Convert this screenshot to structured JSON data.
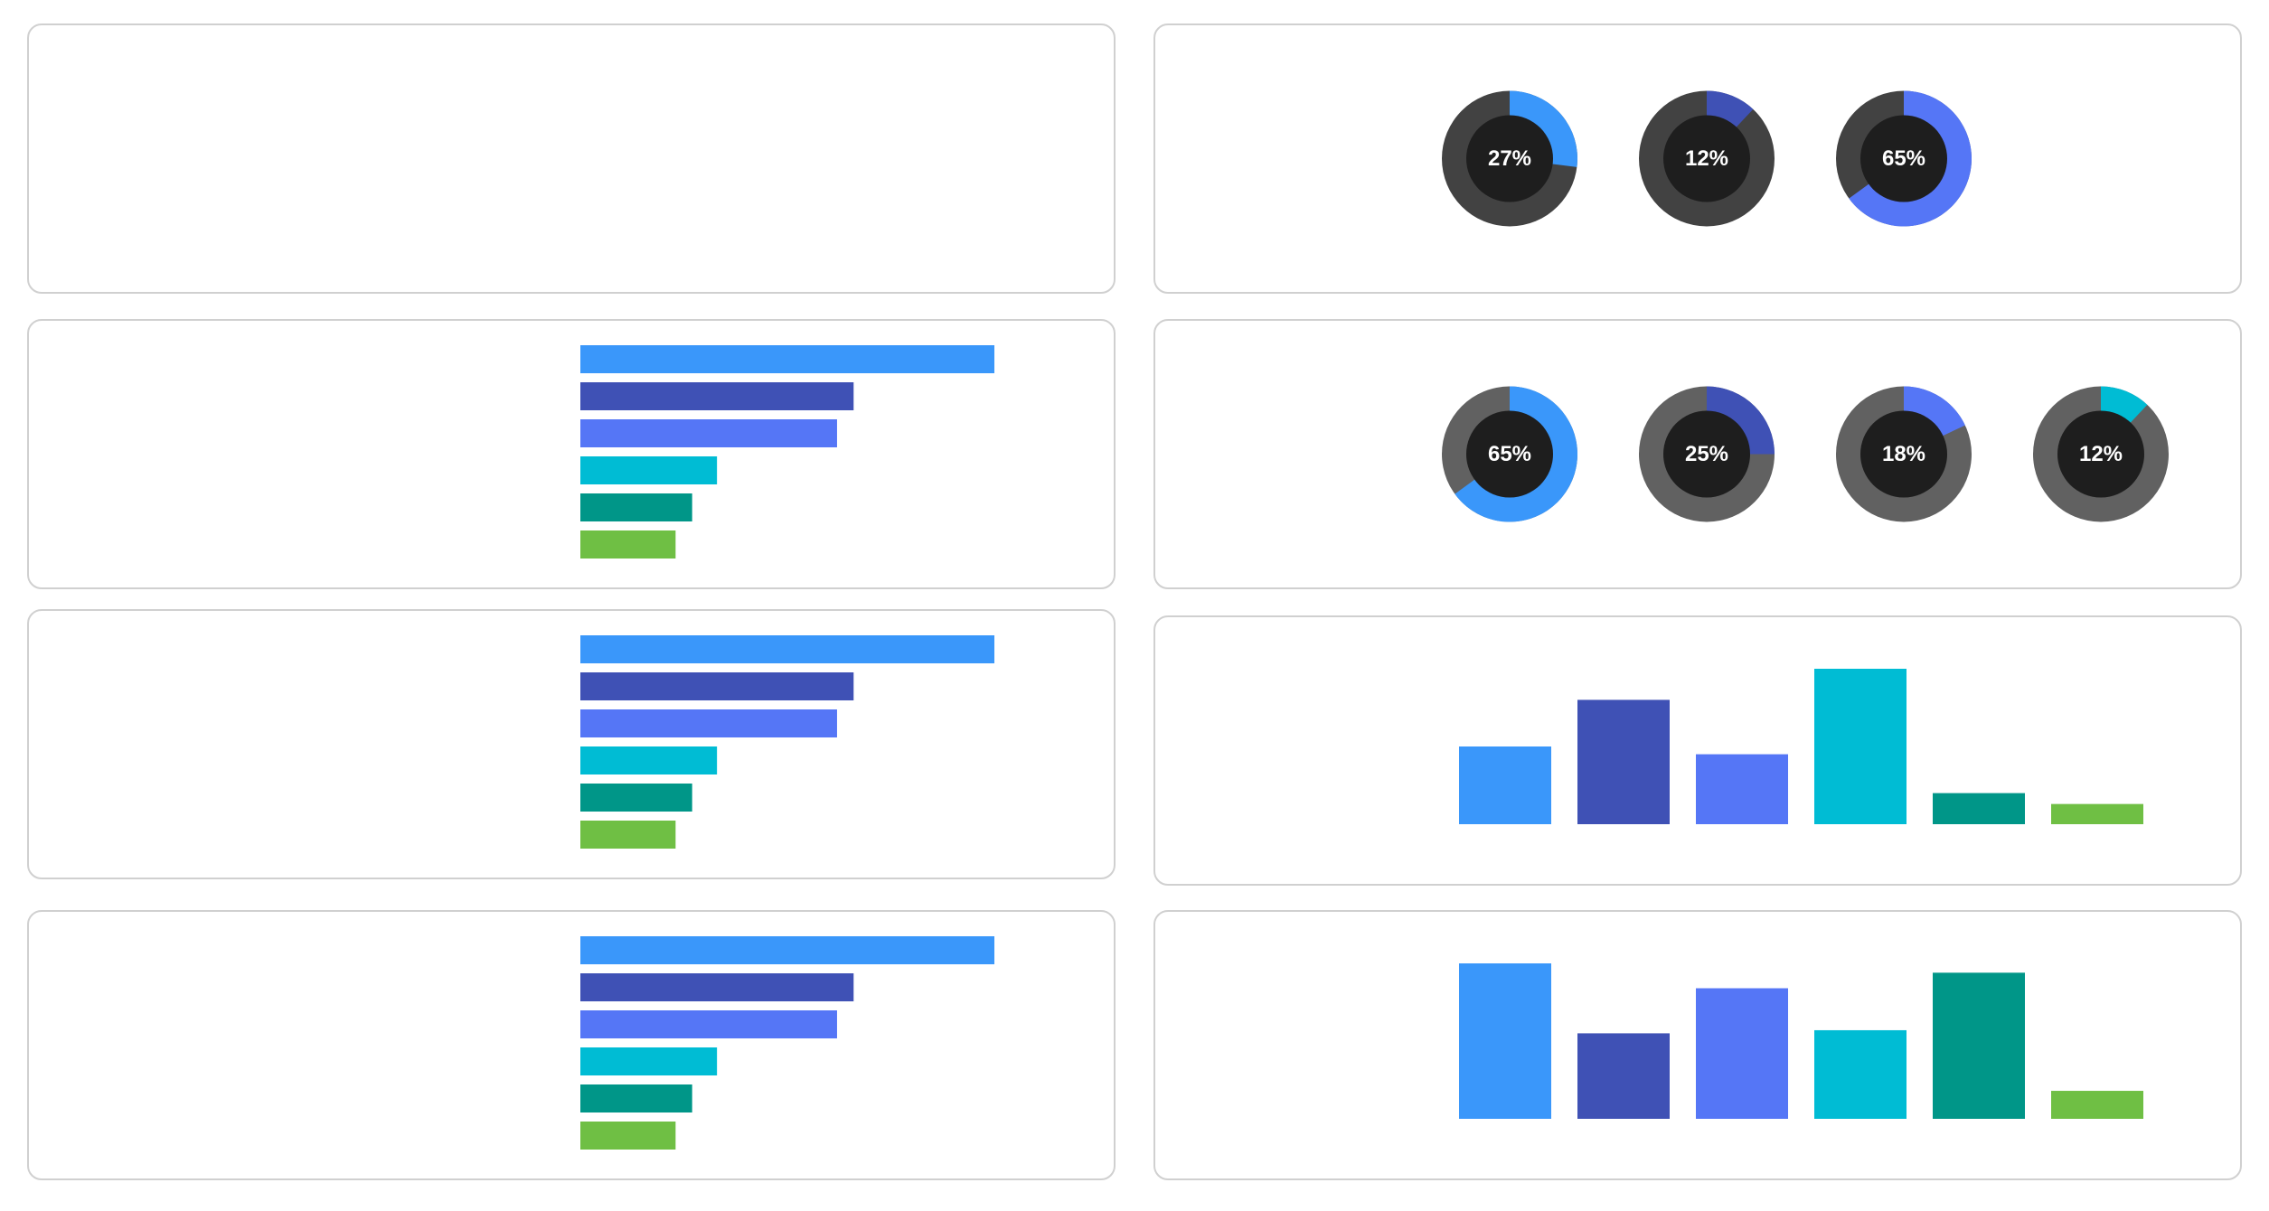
{
  "colors": {
    "blue": "#3a97fa",
    "indigo": "#3f51b5",
    "periwinkle": "#5576f6",
    "cyan": "#00bcd4",
    "teal": "#009688",
    "green": "#6fbf44",
    "track_dark": "#424242",
    "track_mid": "#616161",
    "hole": "#1e1e1e",
    "card_border": "#d0d0d0"
  },
  "cards": [
    {
      "id": "card-1",
      "empty": true
    },
    {
      "id": "card-2"
    },
    {
      "id": "card-3"
    },
    {
      "id": "card-4"
    },
    {
      "id": "card-5"
    },
    {
      "id": "card-6"
    },
    {
      "id": "card-7"
    },
    {
      "id": "card-8"
    }
  ],
  "chart_data": [
    {
      "type": "pie",
      "subtype": "donut-row",
      "track_color": "#424242",
      "donuts": [
        {
          "label": "27%",
          "value": 27,
          "color": "#3a97fa"
        },
        {
          "label": "12%",
          "value": 12,
          "color": "#3f51b5"
        },
        {
          "label": "65%",
          "value": 65,
          "color": "#5576f6"
        }
      ]
    },
    {
      "type": "bar",
      "orientation": "horizontal",
      "values": [
        100,
        66,
        62,
        33,
        27,
        23
      ],
      "colors": [
        "#3a97fa",
        "#3f51b5",
        "#5576f6",
        "#00bcd4",
        "#009688",
        "#6fbf44"
      ]
    },
    {
      "type": "pie",
      "subtype": "donut-row",
      "track_color": "#616161",
      "donuts": [
        {
          "label": "65%",
          "value": 65,
          "color": "#3a97fa"
        },
        {
          "label": "25%",
          "value": 25,
          "color": "#3f51b5"
        },
        {
          "label": "18%",
          "value": 18,
          "color": "#5576f6"
        },
        {
          "label": "12%",
          "value": 12,
          "color": "#00bcd4"
        }
      ]
    },
    {
      "type": "bar",
      "orientation": "horizontal",
      "values": [
        100,
        66,
        62,
        33,
        27,
        23
      ],
      "colors": [
        "#3a97fa",
        "#3f51b5",
        "#5576f6",
        "#00bcd4",
        "#009688",
        "#6fbf44"
      ]
    },
    {
      "type": "bar",
      "orientation": "vertical",
      "values": [
        50,
        80,
        45,
        100,
        20,
        13
      ],
      "colors": [
        "#3a97fa",
        "#3f51b5",
        "#5576f6",
        "#00bcd4",
        "#009688",
        "#6fbf44"
      ]
    },
    {
      "type": "bar",
      "orientation": "horizontal",
      "values": [
        100,
        66,
        62,
        33,
        27,
        23
      ],
      "colors": [
        "#3a97fa",
        "#3f51b5",
        "#5576f6",
        "#00bcd4",
        "#009688",
        "#6fbf44"
      ]
    },
    {
      "type": "bar",
      "orientation": "vertical",
      "values": [
        100,
        55,
        84,
        57,
        94,
        18
      ],
      "colors": [
        "#3a97fa",
        "#3f51b5",
        "#5576f6",
        "#00bcd4",
        "#009688",
        "#6fbf44"
      ]
    }
  ]
}
